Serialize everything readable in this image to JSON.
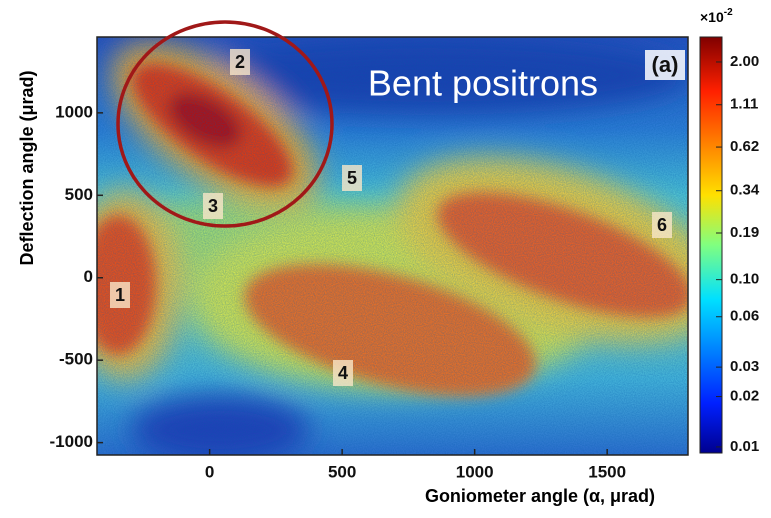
{
  "chart_data": {
    "type": "heatmap",
    "xlabel": "Goniometer angle (α, μrad)",
    "ylabel": "Deflection angle (μrad)",
    "xlim": [
      -425,
      1805
    ],
    "ylim": [
      -1075,
      1460
    ],
    "xticks": [
      0,
      500,
      1000,
      1500
    ],
    "yticks": [
      -1000,
      -500,
      0,
      500,
      1000
    ],
    "colorbar": {
      "log": true,
      "clim": [
        0.0092,
        2.82
      ],
      "scale": "×10",
      "exponent": "-2",
      "ticks": [
        {
          "value": 2,
          "label": "2.00"
        },
        1.11,
        0.62,
        0.34,
        0.19,
        {
          "value": 0.1,
          "label": "0.10"
        },
        0.06,
        0.03,
        0.02,
        0.01
      ]
    },
    "annotations": [
      "1",
      "2",
      "3",
      "4",
      "5",
      "6"
    ],
    "panel_label": "(a)",
    "overlay_text": "Bent positrons"
  }
}
